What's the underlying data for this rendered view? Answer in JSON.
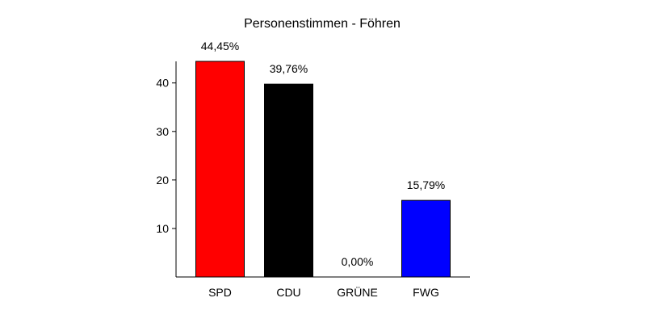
{
  "chart_data": {
    "type": "bar",
    "title": "Personenstimmen - Föhren",
    "xlabel": "",
    "ylabel": "",
    "categories": [
      "SPD",
      "CDU",
      "GRÜNE",
      "FWG"
    ],
    "values": [
      44.45,
      39.76,
      0.0,
      15.79
    ],
    "value_labels": [
      "44,45%",
      "39,76%",
      "0,00%",
      "15,79%"
    ],
    "colors": [
      "#ff0000",
      "#000000",
      "#00aa00",
      "#0000ff"
    ],
    "ylim": [
      0,
      44.45
    ],
    "yticks": [
      10,
      20,
      30,
      40
    ],
    "ytick_labels": [
      "10",
      "20",
      "30",
      "40"
    ],
    "grid": false,
    "legend": "none"
  }
}
